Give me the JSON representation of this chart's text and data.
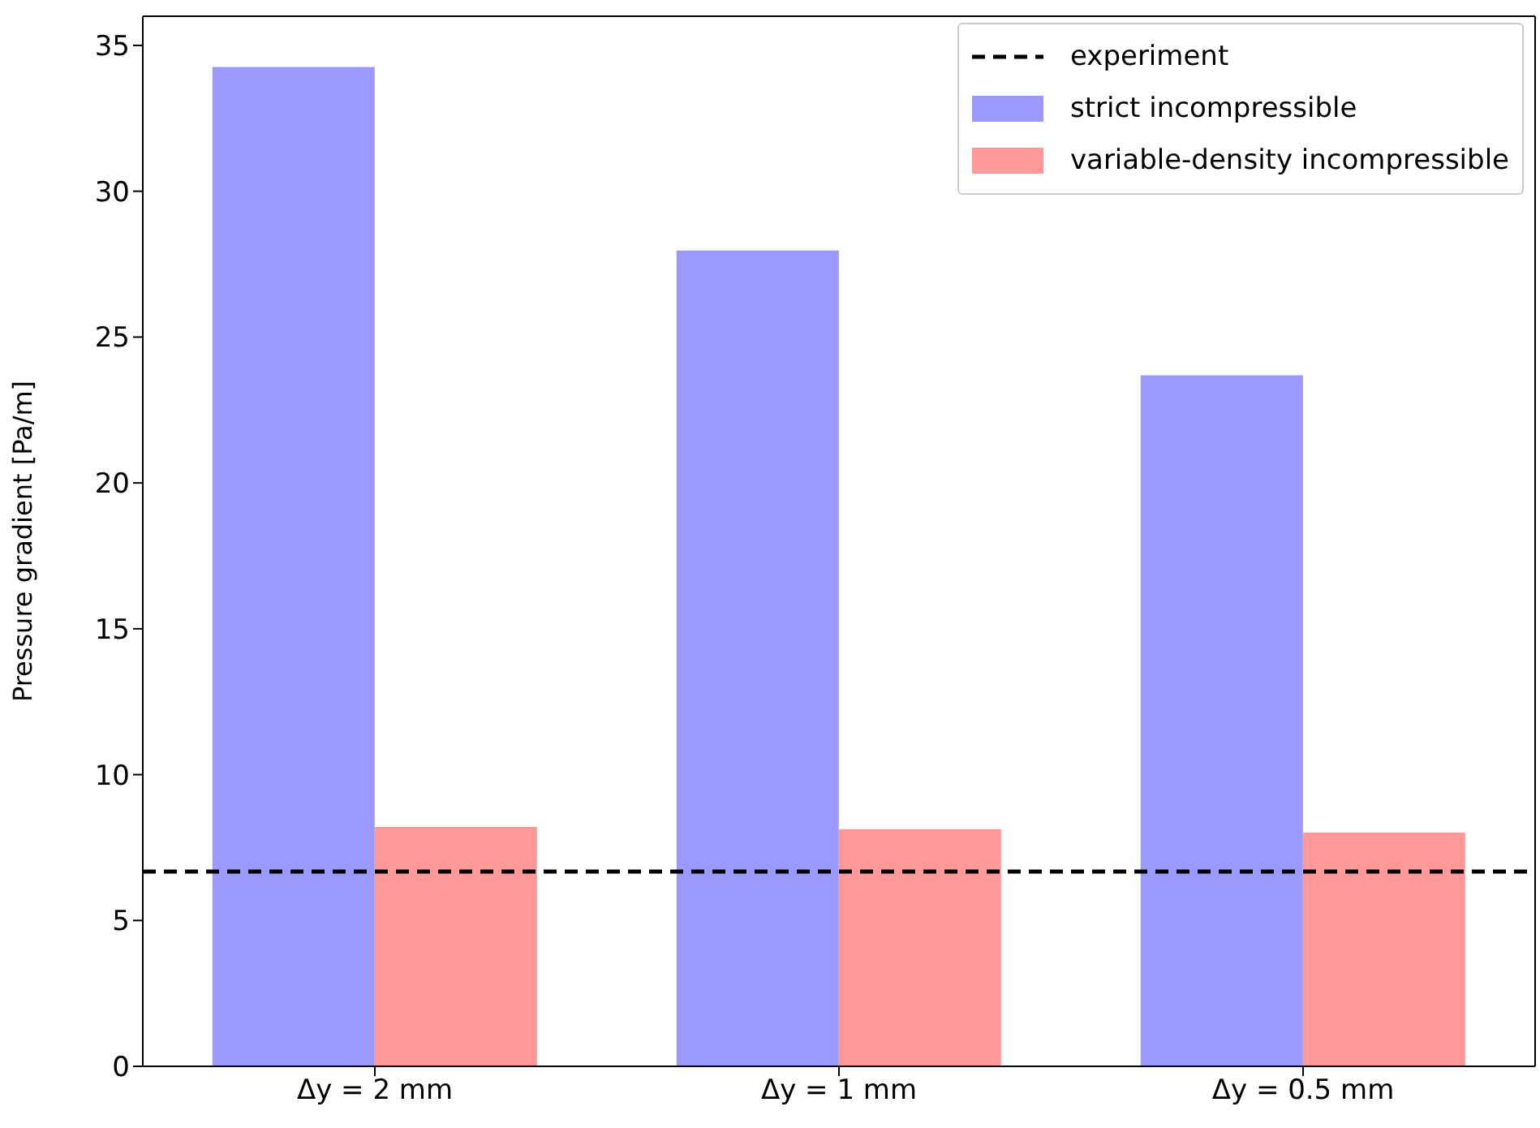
{
  "chart_data": {
    "type": "bar",
    "ylabel": "Pressure gradient [Pa/m]",
    "categories": [
      "Δy = 2 mm",
      "Δy = 1 mm",
      "Δy = 0.5 mm"
    ],
    "series": [
      {
        "name": "strict incompressible",
        "color": "#9999ff",
        "values": [
          34.26,
          27.97,
          23.69
        ]
      },
      {
        "name": "variable-density incompressible",
        "color": "#ff9999",
        "values": [
          8.21,
          8.13,
          8.01
        ]
      }
    ],
    "ref_lines": [
      {
        "axis": "y",
        "value": 6.68,
        "label": "experiment",
        "color": "#000000",
        "line_style": "dashed"
      }
    ],
    "ylim": [
      0,
      36
    ],
    "yticks": [
      0,
      5,
      10,
      15,
      20,
      25,
      30,
      35
    ],
    "legend": "top right",
    "grid": false
  }
}
